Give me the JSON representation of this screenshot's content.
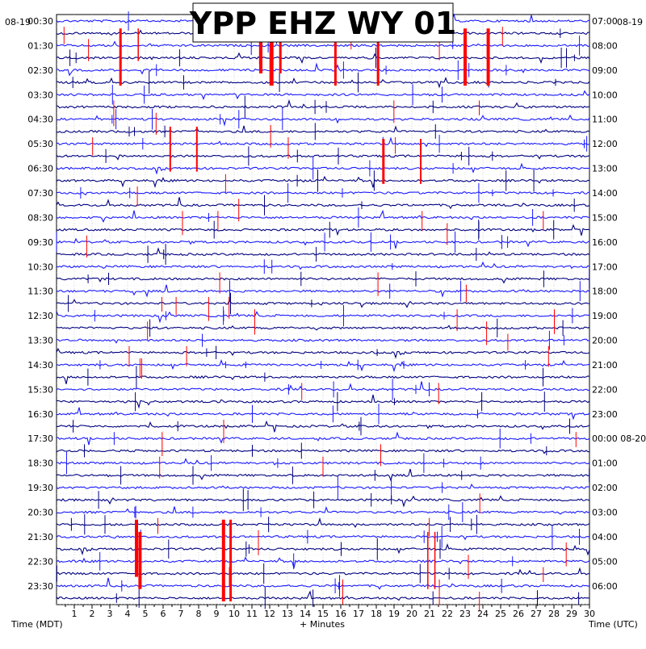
{
  "chart_data": {
    "type": "line",
    "title": "YPP EHZ WY 01",
    "left_date": "08-19",
    "right_date": "08-19",
    "x_axis_label": "+ Minutes",
    "left_axis_label": "Time (MDT)",
    "right_axis_label": "Time (UTC)",
    "x_ticks": [
      "1",
      "2",
      "3",
      "4",
      "5",
      "6",
      "7",
      "8",
      "9",
      "10",
      "11",
      "12",
      "13",
      "14",
      "15",
      "16",
      "17",
      "18",
      "19",
      "20",
      "21",
      "22",
      "23",
      "24",
      "25",
      "26",
      "27",
      "28",
      "29",
      "30"
    ],
    "xlim": [
      0,
      30
    ],
    "row_count": 48,
    "left_time_labels": [
      "00:30",
      "01:30",
      "02:30",
      "03:30",
      "04:30",
      "05:30",
      "06:30",
      "07:30",
      "08:30",
      "09:30",
      "10:30",
      "11:30",
      "12:30",
      "13:30",
      "14:30",
      "15:30",
      "16:30",
      "17:30",
      "18:30",
      "19:30",
      "20:30",
      "21:30",
      "22:30",
      "23:30"
    ],
    "right_time_labels": [
      "07:00",
      "08:00",
      "09:00",
      "10:00",
      "11:00",
      "12:00",
      "13:00",
      "14:00",
      "15:00",
      "16:00",
      "17:00",
      "18:00",
      "19:00",
      "20:00",
      "21:00",
      "22:00",
      "23:00",
      "00:00 08-20",
      "01:00",
      "02:00",
      "03:00",
      "04:00",
      "05:00",
      "06:00"
    ],
    "trace_colors": [
      "#1a1aff",
      "#000080"
    ],
    "event_color": "#ff0000",
    "background": "#ffffff",
    "grid": true
  }
}
